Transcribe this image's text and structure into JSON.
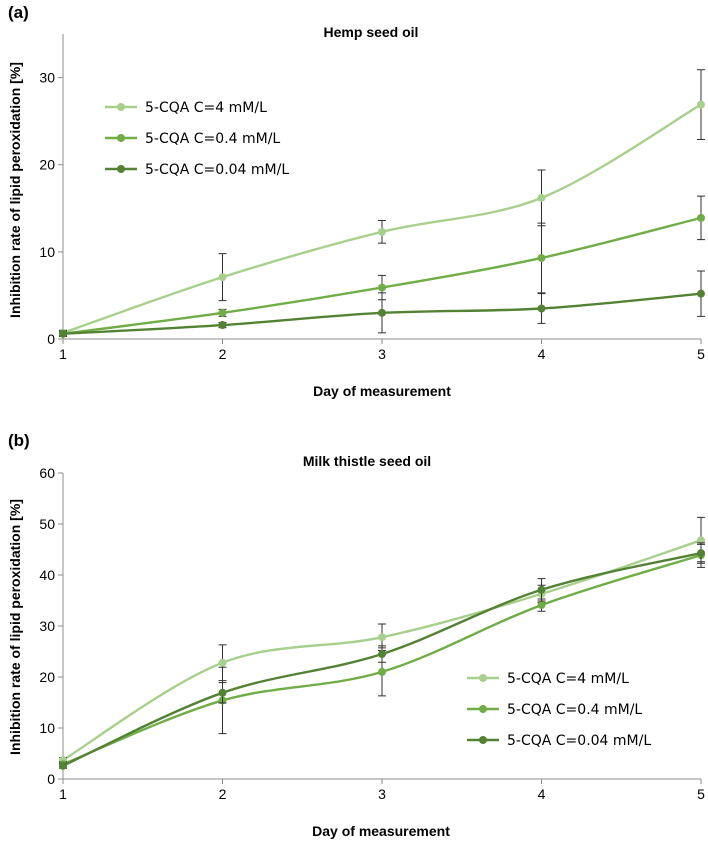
{
  "colors": {
    "series_1": "#a8d08d",
    "series_2": "#70ad47",
    "series_3": "#548235"
  },
  "chart_data": [
    {
      "type": "line",
      "panel_label": "(a)",
      "title": "Hemp seed oil",
      "xlabel": "Day of measurement",
      "ylabel": "Inhibition rate of lipid peroxidation [%]",
      "x": [
        1,
        2,
        3,
        4,
        5
      ],
      "xlim": [
        1,
        5
      ],
      "ylim": [
        0,
        35
      ],
      "yticks": [
        0,
        10,
        20,
        30
      ],
      "grid": false,
      "smooth": true,
      "legend_position": "top-left",
      "series": [
        {
          "name": "5-CQA C=4 mM/L",
          "color": "#a8d08d",
          "values": [
            0.7,
            7.1,
            12.3,
            16.2,
            26.9
          ],
          "errors": [
            0.3,
            2.7,
            1.3,
            3.2,
            4.0
          ]
        },
        {
          "name": "5-CQA C=0.4 mM/L",
          "color": "#70ad47",
          "values": [
            0.6,
            3.0,
            5.9,
            9.3,
            13.9
          ],
          "errors": [
            0.3,
            0.4,
            1.4,
            4.0,
            2.5
          ]
        },
        {
          "name": "5-CQA C=0.04 mM/L",
          "color": "#548235",
          "values": [
            0.6,
            1.6,
            3.0,
            3.5,
            5.2
          ],
          "errors": [
            0.3,
            0.3,
            2.3,
            1.7,
            2.6
          ]
        }
      ]
    },
    {
      "type": "line",
      "panel_label": "(b)",
      "title": "Milk thistle seed oil",
      "xlabel": "Day of measurement",
      "ylabel": "Inhibition rate of lipid peroxidation [%]",
      "x": [
        1,
        2,
        3,
        4,
        5
      ],
      "xlim": [
        1,
        5
      ],
      "ylim": [
        0,
        60
      ],
      "yticks": [
        0,
        10,
        20,
        30,
        40,
        50,
        60
      ],
      "grid": false,
      "smooth": true,
      "legend_position": "bottom-right",
      "series": [
        {
          "name": "5-CQA C=4 mM/L",
          "color": "#a8d08d",
          "values": [
            3.7,
            22.8,
            27.8,
            36.3,
            46.8
          ],
          "errors": [
            0.5,
            3.5,
            2.6,
            1.7,
            4.5
          ]
        },
        {
          "name": "5-CQA C=0.4 mM/L",
          "color": "#70ad47",
          "values": [
            2.9,
            15.4,
            21.0,
            34.1,
            43.9
          ],
          "errors": [
            0.5,
            6.5,
            4.7,
            1.2,
            2.4
          ]
        },
        {
          "name": "5-CQA C=0.04 mM/L",
          "color": "#548235",
          "values": [
            2.6,
            16.9,
            24.5,
            37.1,
            44.3
          ],
          "errors": [
            0.5,
            2.0,
            1.6,
            2.2,
            1.7
          ]
        }
      ]
    }
  ]
}
